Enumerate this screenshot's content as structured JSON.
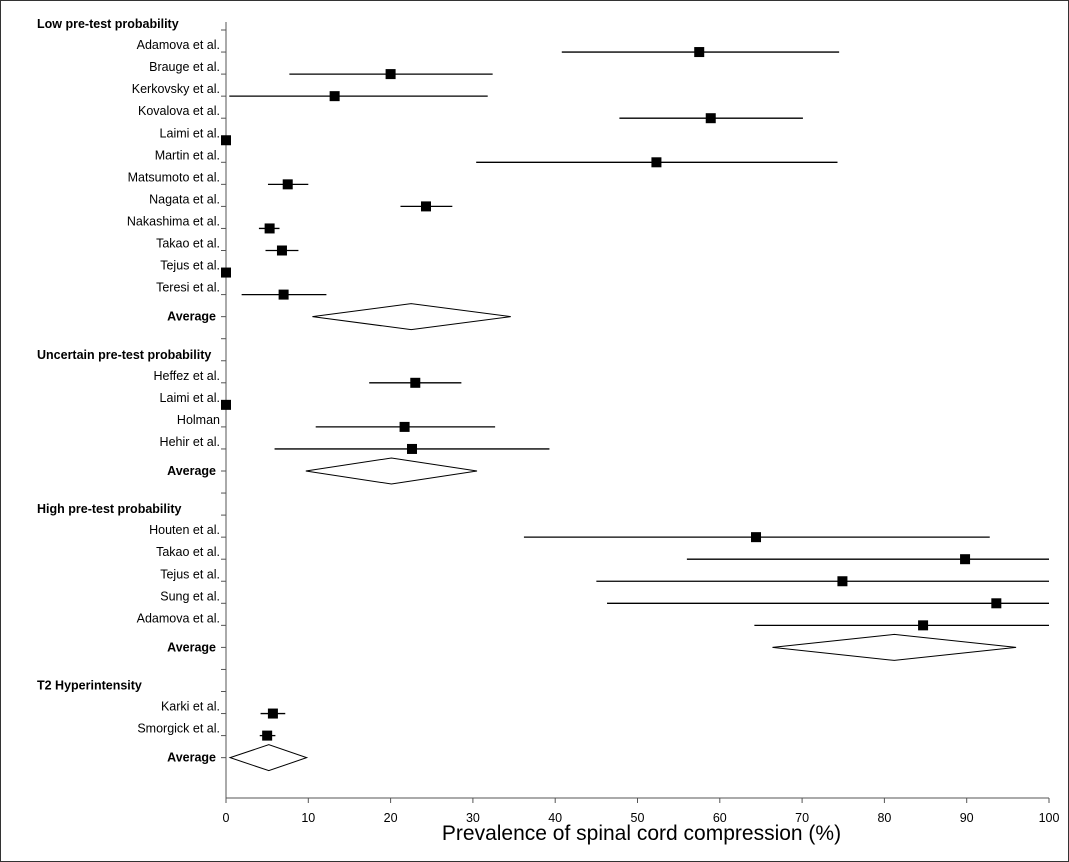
{
  "chart_data": {
    "type": "forest",
    "xlabel": "Prevalence of spinal cord compression (%)",
    "xlim": [
      0,
      100
    ],
    "xticks": [
      0,
      10,
      20,
      30,
      40,
      50,
      60,
      70,
      80,
      90,
      100
    ],
    "grid": false,
    "rows": [
      {
        "kind": "group",
        "label": "Low pre-test probability"
      },
      {
        "kind": "study",
        "label": "Adamova et al.",
        "estimate": 57.5,
        "lower": 40.8,
        "upper": 74.5
      },
      {
        "kind": "study",
        "label": "Brauge et al.",
        "estimate": 20.0,
        "lower": 7.7,
        "upper": 32.4
      },
      {
        "kind": "study",
        "label": "Kerkovsky et al.",
        "estimate": 13.2,
        "lower": 0.4,
        "upper": 31.8
      },
      {
        "kind": "study",
        "label": "Kovalova et al.",
        "estimate": 58.9,
        "lower": 47.8,
        "upper": 70.1
      },
      {
        "kind": "study",
        "label": "Laimi et al.",
        "estimate": 0,
        "lower": 0,
        "upper": 0
      },
      {
        "kind": "study",
        "label": "Martin et al.",
        "estimate": 52.3,
        "lower": 30.4,
        "upper": 74.3
      },
      {
        "kind": "study",
        "label": "Matsumoto et al.",
        "estimate": 7.5,
        "lower": 5.1,
        "upper": 10.0
      },
      {
        "kind": "study",
        "label": "Nagata et al.",
        "estimate": 24.3,
        "lower": 21.2,
        "upper": 27.5
      },
      {
        "kind": "study",
        "label": "Nakashima et al.",
        "estimate": 5.3,
        "lower": 4.0,
        "upper": 6.5
      },
      {
        "kind": "study",
        "label": "Takao et al.",
        "estimate": 6.8,
        "lower": 4.8,
        "upper": 8.8
      },
      {
        "kind": "study",
        "label": "Tejus et al.",
        "estimate": 0,
        "lower": 0,
        "upper": 0
      },
      {
        "kind": "study",
        "label": "Teresi et al.",
        "estimate": 7.0,
        "lower": 1.9,
        "upper": 12.2
      },
      {
        "kind": "average",
        "label": "Average",
        "estimate": 22.5,
        "lower": 10.5,
        "upper": 34.6
      },
      {
        "kind": "spacer"
      },
      {
        "kind": "group",
        "label": "Uncertain pre-test probability"
      },
      {
        "kind": "study",
        "label": "Heffez et al.",
        "estimate": 23.0,
        "lower": 17.4,
        "upper": 28.6
      },
      {
        "kind": "study",
        "label": "Laimi et al.",
        "estimate": 0,
        "lower": 0,
        "upper": 0
      },
      {
        "kind": "study",
        "label": "Holman",
        "estimate": 21.7,
        "lower": 10.9,
        "upper": 32.7
      },
      {
        "kind": "study",
        "label": "Hehir et al.",
        "estimate": 22.6,
        "lower": 5.9,
        "upper": 39.3
      },
      {
        "kind": "average",
        "label": "Average",
        "estimate": 20.1,
        "lower": 9.7,
        "upper": 30.5
      },
      {
        "kind": "spacer"
      },
      {
        "kind": "group",
        "label": "High pre-test probability"
      },
      {
        "kind": "study",
        "label": "Houten et al.",
        "estimate": 64.4,
        "lower": 36.2,
        "upper": 92.8
      },
      {
        "kind": "study",
        "label": "Takao et al.",
        "estimate": 89.8,
        "lower": 56.0,
        "upper": 100
      },
      {
        "kind": "study",
        "label": "Tejus et al.",
        "estimate": 74.9,
        "lower": 45.0,
        "upper": 100
      },
      {
        "kind": "study",
        "label": "Sung et al.",
        "estimate": 93.6,
        "lower": 46.3,
        "upper": 100
      },
      {
        "kind": "study",
        "label": "Adamova et al.",
        "estimate": 84.7,
        "lower": 64.2,
        "upper": 100
      },
      {
        "kind": "average",
        "label": "Average",
        "estimate": 81.2,
        "lower": 66.4,
        "upper": 96.0
      },
      {
        "kind": "spacer"
      },
      {
        "kind": "group",
        "label": "T2 Hyperintensity"
      },
      {
        "kind": "study",
        "label": "Karki et al.",
        "estimate": 5.7,
        "lower": 4.2,
        "upper": 7.2
      },
      {
        "kind": "study",
        "label": "Smorgick et al.",
        "estimate": 5.0,
        "lower": 4.1,
        "upper": 6.0
      },
      {
        "kind": "average",
        "label": "Average",
        "estimate": 5.2,
        "lower": 0.5,
        "upper": 9.8
      }
    ]
  }
}
